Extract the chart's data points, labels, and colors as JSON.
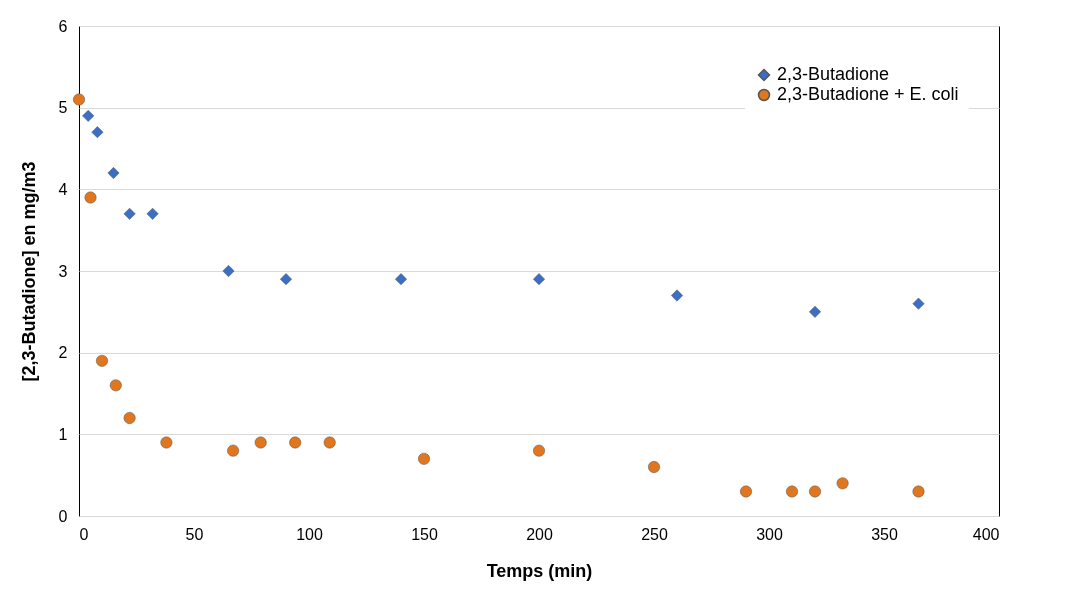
{
  "chart_data": {
    "type": "scatter",
    "xlabel": "Temps (min)",
    "ylabel": "[2,3-Butadione]  en mg/m3",
    "series": [
      {
        "name": "2,3-Butadione",
        "color": "#3a6fc4",
        "marker": "diamond",
        "x": [
          4,
          8,
          15,
          22,
          32,
          65,
          90,
          140,
          200,
          260,
          320,
          365
        ],
        "values": [
          4.9,
          4.7,
          4.2,
          3.7,
          3.7,
          3.0,
          2.9,
          2.9,
          2.9,
          2.7,
          2.5,
          2.6
        ]
      },
      {
        "name": "2,3-Butadione + E. coli",
        "color": "#e0761e",
        "marker": "circle",
        "x": [
          0,
          5,
          10,
          16,
          22,
          38,
          67,
          79,
          94,
          109,
          150,
          200,
          250,
          290,
          310,
          320,
          332,
          365
        ],
        "values": [
          5.1,
          3.9,
          1.9,
          1.6,
          1.2,
          0.9,
          0.8,
          0.9,
          0.9,
          0.9,
          0.7,
          0.8,
          0.6,
          0.3,
          0.3,
          0.3,
          0.4,
          0.3
        ]
      }
    ],
    "xlim": [
      0,
      400
    ],
    "xticks": [
      0,
      50,
      100,
      150,
      200,
      250,
      300,
      350,
      400
    ],
    "ylim": [
      0,
      6
    ],
    "yticks": [
      0,
      1,
      2,
      3,
      4,
      5,
      6
    ],
    "grid": "y",
    "legend": "top right"
  }
}
